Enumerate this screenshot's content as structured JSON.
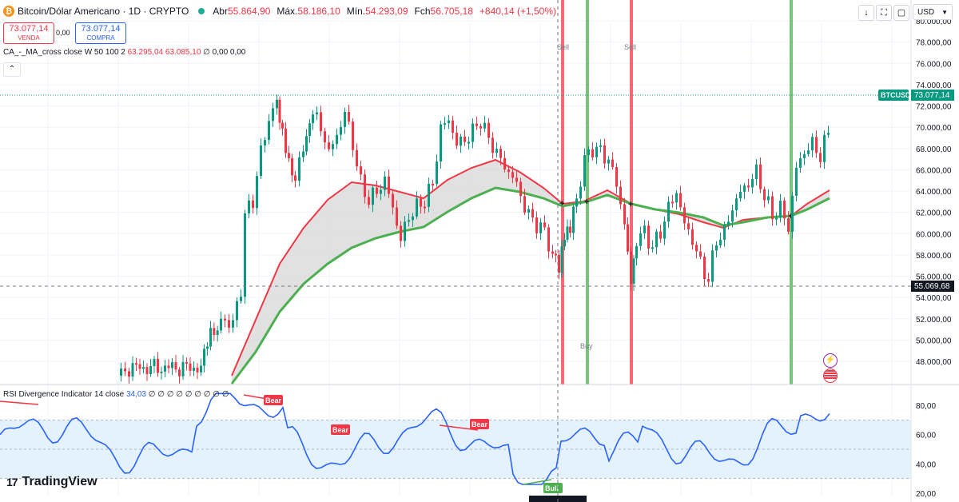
{
  "header": {
    "title": "Bitcoin/Dólar Americano · 1D · CRYPTO",
    "open_label": "Abr",
    "open": "55.864,90",
    "high_label": "Máx.",
    "high": "58.186,10",
    "low_label": "Mín.",
    "low": "54.293,09",
    "close_label": "Fch",
    "close": "56.705,18",
    "change": "+840,14 (+1,50%)"
  },
  "trade": {
    "sell_price": "73.077,14",
    "sell_label": "VENDA",
    "spread": "0,00",
    "buy_price": "73.077,14",
    "buy_label": "COMPRA"
  },
  "indicator": {
    "name": "CA_-_MA_cross close W 50 100 2",
    "values": "63.295,04 63.085,10",
    "extra": "∅ 0,00 0,00",
    "collapse_glyph": "⌃"
  },
  "toolbar": {
    "currency": "USD",
    "down_glyph": "↓",
    "fullscreen_glyph": "⛶",
    "window_glyph": "▢"
  },
  "price_axis": {
    "ticks": [
      "80.000,00",
      "78.000,00",
      "76.000,00",
      "74.000,00",
      "72.000,00",
      "70.000,00",
      "68.000,00",
      "66.000,00",
      "64.000,00",
      "62.000,00",
      "60.000,00",
      "58.000,00",
      "56.000,00",
      "54.000,00",
      "52.000,00",
      "50.000,00",
      "48.000,00"
    ],
    "tick_values": [
      80000,
      78000,
      76000,
      74000,
      72000,
      70000,
      68000,
      66000,
      64000,
      62000,
      60000,
      58000,
      56000,
      54000,
      52000,
      50000,
      48000
    ],
    "last_label": "BTCUSD",
    "last_value": "73.077,14",
    "crosshair_value": "55.069,68"
  },
  "signals": [
    {
      "type": "Sell",
      "color": "#f23645"
    },
    {
      "type": "Buy",
      "color": "#4caf50"
    },
    {
      "type": "Sell",
      "color": "#f23645"
    },
    {
      "type": "Buy",
      "color": "#4caf50"
    }
  ],
  "signal_texts": {
    "sell_1": "Sell",
    "sell_2": "Sell",
    "buy_1": "Buy"
  },
  "rsi": {
    "label": "RSI Divergence Indicator 14 close",
    "value": "34,03",
    "extra": "∅ ∅ ∅ ∅ ∅ ∅ ∅ ∅ ∅",
    "axis": [
      "80,00",
      "60,00",
      "40,00",
      "20,00"
    ],
    "axis_values": [
      80,
      60,
      40,
      20
    ],
    "tags": [
      "Bear",
      "Bear",
      "Bear",
      "Bull"
    ]
  },
  "logo": {
    "mark": "17",
    "text": "TradingView"
  },
  "colors": {
    "up": "#089981",
    "down": "#f23645",
    "ma_fast": "#f23645",
    "ma_slow": "#4caf50",
    "rsi": "#2962ff",
    "band": "#e3f2fd"
  }
}
